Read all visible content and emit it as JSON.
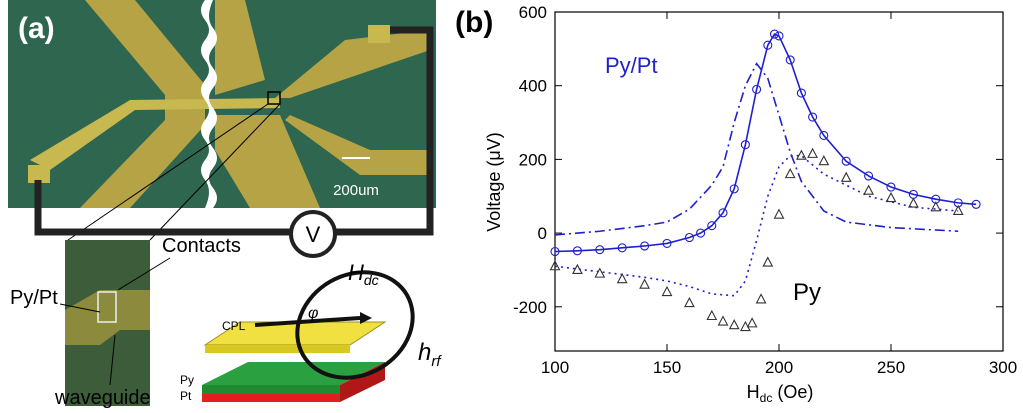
{
  "panel_a": {
    "label": "(a)",
    "scale_bar": "200um",
    "meter": "V",
    "contacts": "Contacts",
    "sample": "Py/Pt",
    "waveguide": "waveguide",
    "cpl": "CPL",
    "py_layer": "Py",
    "pt_layer": "Pt",
    "field_dc": {
      "main": "H",
      "sub": "dc"
    },
    "angle": "φ",
    "field_rf": {
      "main": "h",
      "sub": "rf"
    }
  },
  "chart_data": {
    "type": "line",
    "panel_label": "(b)",
    "y_label": "Voltage (μV)",
    "x_label": {
      "main": "H",
      "sub": "dc",
      "unit": "(Oe)"
    },
    "annotations": [
      "Py/Pt",
      "Py"
    ],
    "xlim": [
      100,
      300
    ],
    "xticks": [
      100,
      150,
      200,
      250,
      300
    ],
    "ylim": [
      -320,
      600
    ],
    "yticks": [
      -200,
      0,
      200,
      400,
      600
    ],
    "series": [
      {
        "style": "solid",
        "color": "#1f1fd0",
        "x": [
          100,
          110,
          120,
          130,
          140,
          150,
          160,
          165,
          170,
          175,
          180,
          185,
          190,
          195,
          198,
          200,
          205,
          210,
          215,
          220,
          230,
          240,
          250,
          260,
          270,
          280,
          288
        ],
        "values": [
          -50,
          -48,
          -45,
          -40,
          -35,
          -28,
          -12,
          0,
          20,
          55,
          120,
          240,
          390,
          510,
          540,
          535,
          470,
          380,
          315,
          265,
          195,
          155,
          125,
          105,
          92,
          82,
          78
        ]
      },
      {
        "style": "circles",
        "color": "#1f1fd0",
        "x": [
          100,
          110,
          120,
          130,
          140,
          150,
          160,
          165,
          170,
          175,
          180,
          185,
          190,
          195,
          198,
          200,
          205,
          210,
          215,
          220,
          230,
          240,
          250,
          260,
          270,
          280,
          288
        ],
        "values": [
          -50,
          -48,
          -45,
          -40,
          -35,
          -28,
          -12,
          0,
          20,
          55,
          120,
          240,
          390,
          510,
          540,
          535,
          470,
          380,
          315,
          265,
          195,
          155,
          125,
          105,
          92,
          82,
          78
        ]
      },
      {
        "style": "dashdot",
        "color": "#1f1fd0",
        "x": [
          100,
          120,
          140,
          150,
          160,
          170,
          175,
          180,
          185,
          190,
          195,
          200,
          205,
          210,
          220,
          230,
          250,
          280
        ],
        "values": [
          -5,
          5,
          20,
          30,
          65,
          130,
          180,
          300,
          400,
          460,
          420,
          320,
          220,
          140,
          60,
          30,
          15,
          5
        ]
      },
      {
        "style": "dotted",
        "color": "#1f1fd0",
        "x": [
          100,
          120,
          140,
          150,
          160,
          170,
          180,
          185,
          190,
          195,
          200,
          205,
          210,
          220,
          240,
          260,
          280
        ],
        "values": [
          -90,
          -105,
          -120,
          -130,
          -145,
          -165,
          -170,
          -130,
          -20,
          100,
          180,
          210,
          210,
          160,
          100,
          70,
          60
        ]
      },
      {
        "style": "triangles",
        "color": "#333333",
        "x": [
          100,
          110,
          120,
          130,
          140,
          150,
          160,
          170,
          175,
          180,
          185,
          188,
          192,
          195,
          200,
          205,
          210,
          215,
          220,
          230,
          240,
          250,
          260,
          270,
          280
        ],
        "values": [
          -90,
          -100,
          -110,
          -125,
          -140,
          -160,
          -190,
          -225,
          -240,
          -250,
          -255,
          -245,
          -180,
          -80,
          50,
          160,
          210,
          215,
          195,
          150,
          115,
          95,
          80,
          70,
          60
        ]
      }
    ]
  }
}
